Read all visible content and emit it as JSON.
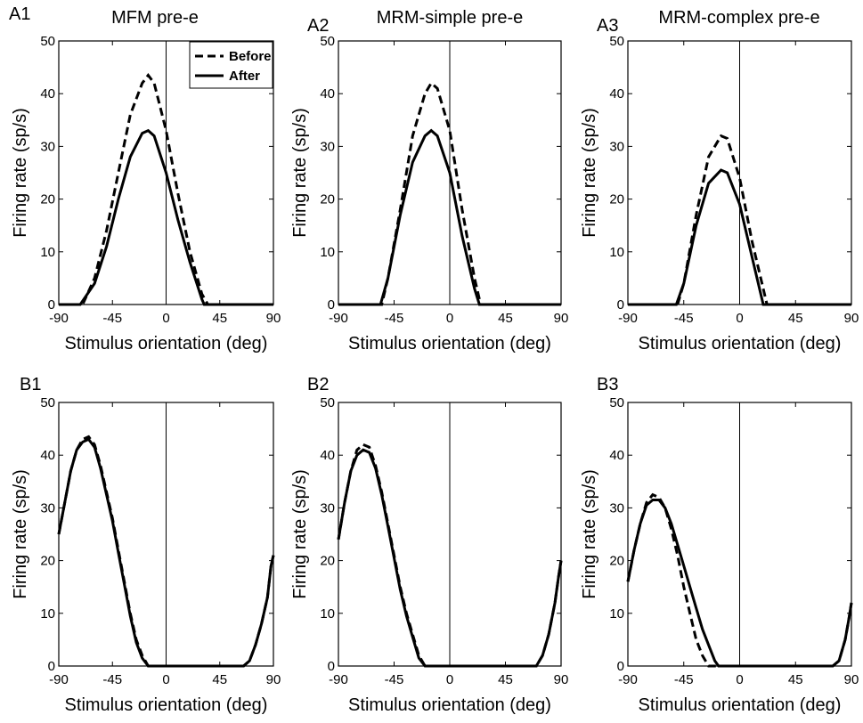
{
  "chart_data": [
    {
      "id": "A1",
      "type": "line",
      "title": "MFM pre-e",
      "xlabel": "Stimulus orientation (deg)",
      "ylabel": "Firing rate (sp/s)",
      "xlim": [
        -90,
        90
      ],
      "ylim": [
        0,
        50
      ],
      "xticks": [
        -90,
        -45,
        0,
        45,
        90
      ],
      "yticks": [
        0,
        10,
        20,
        30,
        40,
        50
      ],
      "legend": {
        "position": "top-right",
        "entries": [
          "Before",
          "After"
        ]
      },
      "series": [
        {
          "name": "Before",
          "style": "dashed",
          "x": [
            -90,
            -70,
            -60,
            -50,
            -40,
            -30,
            -20,
            -15,
            -10,
            0,
            10,
            20,
            30,
            35,
            45,
            90
          ],
          "y": [
            0,
            0,
            5,
            14,
            25,
            36,
            42,
            43.5,
            42,
            33,
            21,
            10,
            2,
            0,
            0,
            0
          ]
        },
        {
          "name": "After",
          "style": "solid",
          "x": [
            -90,
            -72,
            -60,
            -50,
            -40,
            -30,
            -20,
            -15,
            -10,
            0,
            10,
            20,
            30,
            32,
            45,
            90
          ],
          "y": [
            0,
            0,
            4,
            11,
            20,
            28,
            32.5,
            33,
            32,
            25,
            16,
            8,
            1,
            0,
            0,
            0
          ]
        }
      ]
    },
    {
      "id": "A2",
      "type": "line",
      "title": "MRM-simple pre-e",
      "xlabel": "Stimulus orientation (deg)",
      "ylabel": "Firing rate (sp/s)",
      "xlim": [
        -90,
        90
      ],
      "ylim": [
        0,
        50
      ],
      "xticks": [
        -90,
        -45,
        0,
        45,
        90
      ],
      "yticks": [
        0,
        10,
        20,
        30,
        40,
        50
      ],
      "series": [
        {
          "name": "Before",
          "style": "dashed",
          "x": [
            -90,
            -55,
            -50,
            -40,
            -30,
            -20,
            -15,
            -10,
            0,
            10,
            20,
            25,
            90
          ],
          "y": [
            0,
            0,
            5,
            18,
            32,
            40,
            42,
            41,
            33,
            18,
            5,
            0,
            0
          ]
        },
        {
          "name": "After",
          "style": "solid",
          "x": [
            -90,
            -56,
            -50,
            -40,
            -30,
            -20,
            -15,
            -10,
            0,
            10,
            20,
            24,
            90
          ],
          "y": [
            0,
            0,
            5,
            17,
            27,
            32,
            33,
            32,
            25,
            13,
            3,
            0,
            0
          ]
        }
      ]
    },
    {
      "id": "A3",
      "type": "line",
      "title": "MRM-complex pre-e",
      "xlabel": "Stimulus orientation (deg)",
      "ylabel": "Firing rate (sp/s)",
      "xlim": [
        -90,
        90
      ],
      "ylim": [
        0,
        50
      ],
      "xticks": [
        -90,
        -45,
        0,
        45,
        90
      ],
      "yticks": [
        0,
        10,
        20,
        30,
        40,
        50
      ],
      "series": [
        {
          "name": "Before",
          "style": "dashed",
          "x": [
            -90,
            -50,
            -45,
            -35,
            -25,
            -15,
            -10,
            0,
            10,
            20,
            22,
            90
          ],
          "y": [
            0,
            0,
            4,
            17,
            28,
            32,
            31.5,
            24,
            12,
            2,
            0,
            0
          ]
        },
        {
          "name": "After",
          "style": "solid",
          "x": [
            -90,
            -51,
            -45,
            -35,
            -25,
            -15,
            -10,
            0,
            10,
            19,
            90
          ],
          "y": [
            0,
            0,
            4,
            15,
            23,
            25.5,
            25,
            19,
            9,
            0,
            0
          ]
        }
      ]
    },
    {
      "id": "B1",
      "type": "line",
      "title": "",
      "xlabel": "Stimulus orientation (deg)",
      "ylabel": "Firing rate (sp/s)",
      "xlim": [
        -90,
        90
      ],
      "ylim": [
        0,
        50
      ],
      "xticks": [
        -90,
        -45,
        0,
        45,
        90
      ],
      "yticks": [
        0,
        10,
        20,
        30,
        40,
        50
      ],
      "series": [
        {
          "name": "Before",
          "style": "dashed",
          "x": [
            -90,
            -85,
            -80,
            -75,
            -70,
            -65,
            -60,
            -55,
            -50,
            -45,
            -40,
            -35,
            -30,
            -25,
            -20,
            -15,
            -10,
            -5,
            0,
            60,
            65,
            70,
            75,
            80,
            85,
            88,
            90
          ],
          "y": [
            25,
            31,
            37,
            41,
            43,
            43.5,
            42,
            38,
            33,
            28,
            22,
            16,
            10,
            5,
            2,
            0,
            0,
            0,
            0,
            0,
            0,
            1,
            4,
            8,
            13,
            19,
            21
          ]
        },
        {
          "name": "After",
          "style": "solid",
          "x": [
            -90,
            -85,
            -80,
            -75,
            -70,
            -65,
            -60,
            -55,
            -50,
            -45,
            -40,
            -35,
            -30,
            -25,
            -20,
            -15,
            -10,
            -5,
            0,
            60,
            65,
            70,
            75,
            80,
            85,
            88,
            90
          ],
          "y": [
            25,
            31,
            37,
            41,
            42.5,
            43,
            41.5,
            37.5,
            32.5,
            27.5,
            21.5,
            15.5,
            9.5,
            4.5,
            1.5,
            0,
            0,
            0,
            0,
            0,
            0,
            1,
            4,
            8,
            13,
            19,
            21
          ]
        }
      ]
    },
    {
      "id": "B2",
      "type": "line",
      "title": "",
      "xlabel": "Stimulus orientation (deg)",
      "ylabel": "Firing rate (sp/s)",
      "xlim": [
        -90,
        90
      ],
      "ylim": [
        0,
        50
      ],
      "xticks": [
        -90,
        -45,
        0,
        45,
        90
      ],
      "yticks": [
        0,
        10,
        20,
        30,
        40,
        50
      ],
      "series": [
        {
          "name": "Before",
          "style": "dashed",
          "x": [
            -90,
            -85,
            -80,
            -75,
            -70,
            -65,
            -60,
            -55,
            -50,
            -45,
            -40,
            -35,
            -30,
            -25,
            -20,
            -18,
            0,
            70,
            75,
            80,
            85,
            88,
            90
          ],
          "y": [
            24,
            31,
            37,
            41,
            42,
            41.5,
            38,
            33,
            27,
            21,
            15,
            10,
            6,
            2,
            0,
            0,
            0,
            0,
            2,
            6,
            12,
            17,
            20
          ]
        },
        {
          "name": "After",
          "style": "solid",
          "x": [
            -90,
            -85,
            -80,
            -75,
            -70,
            -65,
            -60,
            -55,
            -50,
            -45,
            -40,
            -35,
            -30,
            -25,
            -20,
            -18,
            0,
            70,
            75,
            80,
            85,
            88,
            90
          ],
          "y": [
            24,
            31,
            37,
            40,
            41,
            40.5,
            37.5,
            32.5,
            26.5,
            20.5,
            14.5,
            9.5,
            5.5,
            1.5,
            0,
            0,
            0,
            0,
            2,
            6,
            12,
            17,
            20
          ]
        }
      ]
    },
    {
      "id": "B3",
      "type": "line",
      "title": "",
      "xlabel": "Stimulus orientation (deg)",
      "ylabel": "Firing rate (sp/s)",
      "xlim": [
        -90,
        90
      ],
      "ylim": [
        0,
        50
      ],
      "xticks": [
        -90,
        -45,
        0,
        45,
        90
      ],
      "yticks": [
        0,
        10,
        20,
        30,
        40,
        50
      ],
      "series": [
        {
          "name": "Before",
          "style": "dashed",
          "x": [
            -90,
            -85,
            -80,
            -75,
            -70,
            -65,
            -60,
            -55,
            -50,
            -45,
            -40,
            -35,
            -30,
            -25,
            -22,
            0,
            75,
            80,
            85,
            88,
            90
          ],
          "y": [
            16,
            22,
            27,
            31,
            32.5,
            32,
            30,
            26,
            21,
            15,
            10,
            5,
            2,
            0,
            0,
            0,
            0,
            1,
            5,
            9,
            12
          ]
        },
        {
          "name": "After",
          "style": "solid",
          "x": [
            -90,
            -85,
            -80,
            -75,
            -70,
            -65,
            -60,
            -55,
            -50,
            -45,
            -40,
            -35,
            -30,
            -25,
            -20,
            -17,
            0,
            75,
            80,
            85,
            88,
            90
          ],
          "y": [
            16,
            22,
            27,
            30.5,
            31.5,
            31.5,
            30,
            27,
            23,
            19,
            15,
            11,
            7,
            4,
            1,
            0,
            0,
            0,
            1,
            5,
            9,
            12
          ]
        }
      ]
    }
  ]
}
